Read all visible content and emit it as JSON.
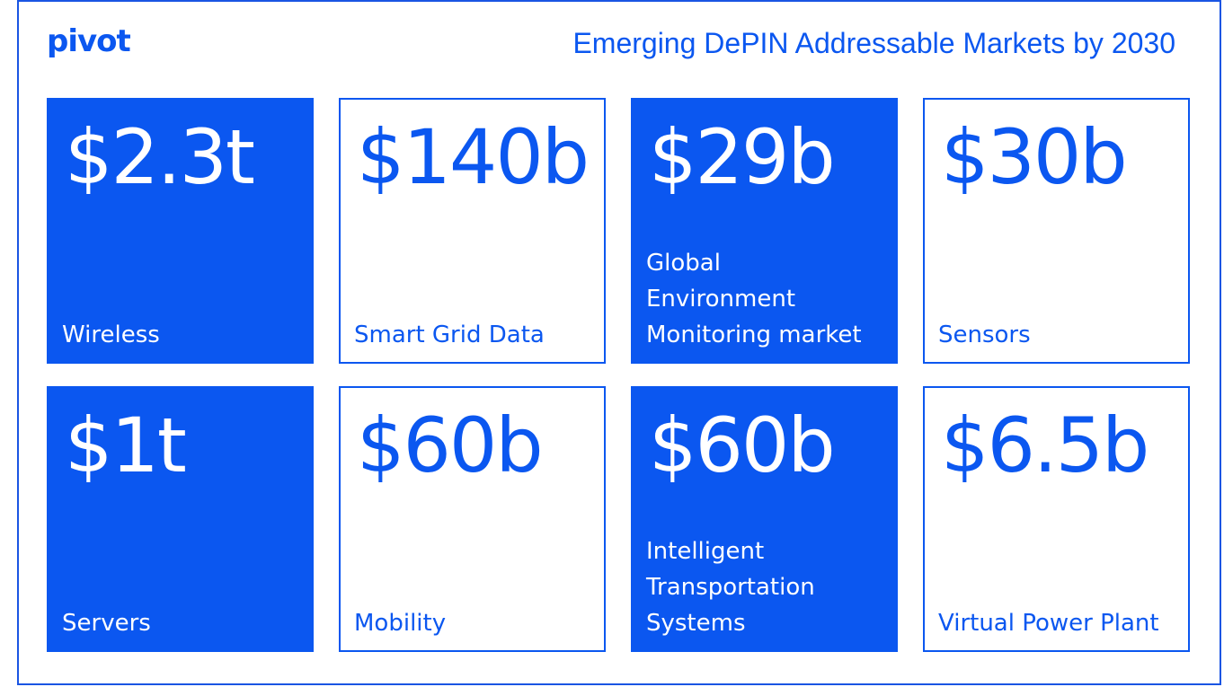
{
  "header": {
    "logo": "pivot",
    "title": "Emerging DePIN Addressable Markets by 2030"
  },
  "colors": {
    "accent": "#0b57f0",
    "background": "#ffffff"
  },
  "chart_data": {
    "type": "table",
    "title": "Emerging DePIN Addressable Markets by 2030",
    "tiles": [
      {
        "value": "$2.3t",
        "label": "Wireless",
        "style": "solid"
      },
      {
        "value": "$140b",
        "label": "Smart Grid Data",
        "style": "outline"
      },
      {
        "value": "$29b",
        "label": "Global\nEnvironment\nMonitoring market",
        "style": "solid"
      },
      {
        "value": "$30b",
        "label": "Sensors",
        "style": "outline"
      },
      {
        "value": "$1t",
        "label": "Servers",
        "style": "solid"
      },
      {
        "value": "$60b",
        "label": "Mobility",
        "style": "outline"
      },
      {
        "value": "$60b",
        "label": "Intelligent\nTransportation\nSystems",
        "style": "solid"
      },
      {
        "value": "$6.5b",
        "label": "Virtual Power Plant",
        "style": "outline"
      }
    ]
  }
}
